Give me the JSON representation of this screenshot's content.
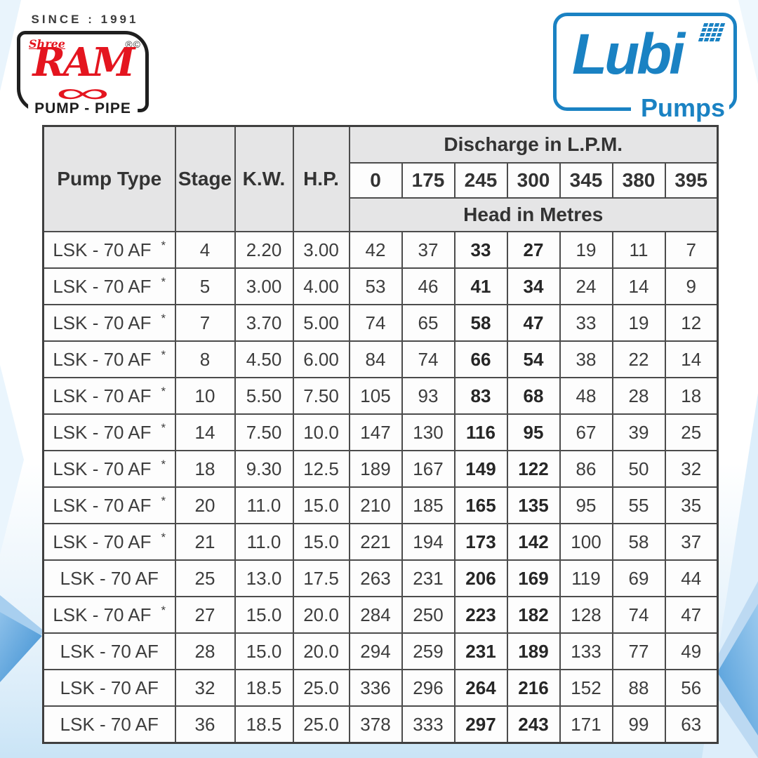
{
  "branding": {
    "ram": {
      "since": "SINCE : 1991",
      "shree": "Shree",
      "name": "RAM",
      "marks": "®©",
      "tagline": "PUMP - PIPE",
      "swirl_glyph": "∞",
      "red": "#e4151f"
    },
    "lubi": {
      "name": "Lubi",
      "subtitle": "Pumps",
      "blue": "#1a82c3"
    }
  },
  "table": {
    "headers": {
      "pump_type": "Pump Type",
      "stage": "Stage",
      "kw": "K.W.",
      "hp": "H.P.",
      "discharge": "Discharge in L.P.M.",
      "head": "Head in Metres",
      "discharge_values": [
        "0",
        "175",
        "245",
        "300",
        "345",
        "380",
        "395"
      ]
    },
    "star_symbol": "*",
    "bold_head_columns": [
      2,
      3
    ],
    "rows": [
      {
        "pump_type": "LSK - 70 AF",
        "star": true,
        "stage": "4",
        "kw": "2.20",
        "hp": "3.00",
        "heads": [
          "42",
          "37",
          "33",
          "27",
          "19",
          "11",
          "7"
        ]
      },
      {
        "pump_type": "LSK - 70 AF",
        "star": true,
        "stage": "5",
        "kw": "3.00",
        "hp": "4.00",
        "heads": [
          "53",
          "46",
          "41",
          "34",
          "24",
          "14",
          "9"
        ]
      },
      {
        "pump_type": "LSK - 70 AF",
        "star": true,
        "stage": "7",
        "kw": "3.70",
        "hp": "5.00",
        "heads": [
          "74",
          "65",
          "58",
          "47",
          "33",
          "19",
          "12"
        ]
      },
      {
        "pump_type": "LSK - 70 AF",
        "star": true,
        "stage": "8",
        "kw": "4.50",
        "hp": "6.00",
        "heads": [
          "84",
          "74",
          "66",
          "54",
          "38",
          "22",
          "14"
        ]
      },
      {
        "pump_type": "LSK - 70 AF",
        "star": true,
        "stage": "10",
        "kw": "5.50",
        "hp": "7.50",
        "heads": [
          "105",
          "93",
          "83",
          "68",
          "48",
          "28",
          "18"
        ]
      },
      {
        "pump_type": "LSK - 70 AF",
        "star": true,
        "stage": "14",
        "kw": "7.50",
        "hp": "10.0",
        "heads": [
          "147",
          "130",
          "116",
          "95",
          "67",
          "39",
          "25"
        ]
      },
      {
        "pump_type": "LSK - 70 AF",
        "star": true,
        "stage": "18",
        "kw": "9.30",
        "hp": "12.5",
        "heads": [
          "189",
          "167",
          "149",
          "122",
          "86",
          "50",
          "32"
        ]
      },
      {
        "pump_type": "LSK - 70 AF",
        "star": true,
        "stage": "20",
        "kw": "11.0",
        "hp": "15.0",
        "heads": [
          "210",
          "185",
          "165",
          "135",
          "95",
          "55",
          "35"
        ]
      },
      {
        "pump_type": "LSK - 70 AF",
        "star": true,
        "stage": "21",
        "kw": "11.0",
        "hp": "15.0",
        "heads": [
          "221",
          "194",
          "173",
          "142",
          "100",
          "58",
          "37"
        ]
      },
      {
        "pump_type": "LSK - 70 AF",
        "star": false,
        "stage": "25",
        "kw": "13.0",
        "hp": "17.5",
        "heads": [
          "263",
          "231",
          "206",
          "169",
          "119",
          "69",
          "44"
        ]
      },
      {
        "pump_type": "LSK - 70 AF",
        "star": true,
        "stage": "27",
        "kw": "15.0",
        "hp": "20.0",
        "heads": [
          "284",
          "250",
          "223",
          "182",
          "128",
          "74",
          "47"
        ]
      },
      {
        "pump_type": "LSK - 70 AF",
        "star": false,
        "stage": "28",
        "kw": "15.0",
        "hp": "20.0",
        "heads": [
          "294",
          "259",
          "231",
          "189",
          "133",
          "77",
          "49"
        ]
      },
      {
        "pump_type": "LSK - 70 AF",
        "star": false,
        "stage": "32",
        "kw": "18.5",
        "hp": "25.0",
        "heads": [
          "336",
          "296",
          "264",
          "216",
          "152",
          "88",
          "56"
        ]
      },
      {
        "pump_type": "LSK - 70 AF",
        "star": false,
        "stage": "36",
        "kw": "18.5",
        "hp": "25.0",
        "heads": [
          "378",
          "333",
          "297",
          "243",
          "171",
          "99",
          "63"
        ]
      }
    ]
  }
}
